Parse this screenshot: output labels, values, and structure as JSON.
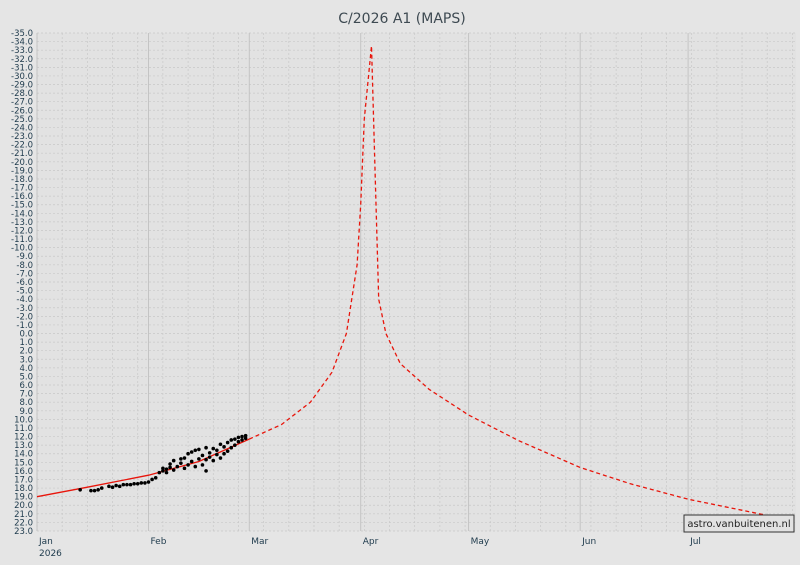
{
  "chart_data": {
    "type": "scatter",
    "title": "C/2026 A1 (MAPS)",
    "year_label": "2026",
    "credit": "astro.vanbuitenen.nl",
    "ylim": [
      -35,
      23
    ],
    "y_inverted": true,
    "y_tick_step": 1,
    "x_axis_type": "date",
    "xlim": [
      "2026-01-01",
      "2026-07-31"
    ],
    "x_ticks": [
      {
        "date": "2026-01-01",
        "label": "Jan"
      },
      {
        "date": "2026-02-01",
        "label": "Feb"
      },
      {
        "date": "2026-03-01",
        "label": "Mar"
      },
      {
        "date": "2026-04-01",
        "label": "Apr"
      },
      {
        "date": "2026-05-01",
        "label": "May"
      },
      {
        "date": "2026-06-01",
        "label": "Jun"
      },
      {
        "date": "2026-07-01",
        "label": "Jul"
      }
    ],
    "grid": true,
    "colors": {
      "background": "#e5e5e5",
      "plot_bg": "#e2e2e2",
      "grid": "#c8c8c8",
      "fit": "#e8150b",
      "observations": "#000000",
      "title": "#3e4a52",
      "ticks": "#1e3a4c"
    },
    "series": [
      {
        "style": "solid-line",
        "points": [
          [
            "2026-01-01",
            19.0
          ],
          [
            "2026-01-15",
            17.9
          ],
          [
            "2026-02-01",
            16.5
          ],
          [
            "2026-02-15",
            14.9
          ],
          [
            "2026-03-01",
            12.3
          ]
        ]
      },
      {
        "style": "dashed-line",
        "points": [
          [
            "2026-03-01",
            12.3
          ],
          [
            "2026-03-10",
            10.6
          ],
          [
            "2026-03-18",
            8.0
          ],
          [
            "2026-03-24",
            4.5
          ],
          [
            "2026-03-28",
            0.0
          ],
          [
            "2026-03-31",
            -8.0
          ],
          [
            "2026-04-01",
            -15.0
          ],
          [
            "2026-04-02",
            -25.0
          ],
          [
            "2026-04-04",
            -33.5
          ],
          [
            "2026-04-06",
            -4.0
          ],
          [
            "2026-04-08",
            0.0
          ],
          [
            "2026-04-12",
            3.5
          ],
          [
            "2026-04-20",
            6.5
          ],
          [
            "2026-05-01",
            9.5
          ],
          [
            "2026-05-15",
            12.5
          ],
          [
            "2026-06-01",
            15.6
          ],
          [
            "2026-06-15",
            17.5
          ],
          [
            "2026-07-01",
            19.3
          ],
          [
            "2026-07-15",
            20.5
          ],
          [
            "2026-07-29",
            21.7
          ]
        ]
      },
      {
        "style": "points",
        "points": [
          [
            "2026-01-13",
            18.2
          ],
          [
            "2026-01-16",
            18.3
          ],
          [
            "2026-01-17",
            18.3
          ],
          [
            "2026-01-18",
            18.2
          ],
          [
            "2026-01-19",
            18.0
          ],
          [
            "2026-01-21",
            17.8
          ],
          [
            "2026-01-22",
            17.9
          ],
          [
            "2026-01-23",
            17.7
          ],
          [
            "2026-01-24",
            17.8
          ],
          [
            "2026-01-25",
            17.6
          ],
          [
            "2026-01-26",
            17.6
          ],
          [
            "2026-01-27",
            17.6
          ],
          [
            "2026-01-28",
            17.5
          ],
          [
            "2026-01-29",
            17.5
          ],
          [
            "2026-01-30",
            17.4
          ],
          [
            "2026-01-31",
            17.4
          ],
          [
            "2026-02-01",
            17.3
          ],
          [
            "2026-02-02",
            17.0
          ],
          [
            "2026-02-03",
            16.8
          ],
          [
            "2026-02-04",
            16.2
          ],
          [
            "2026-02-05",
            16.0
          ],
          [
            "2026-02-05",
            15.7
          ],
          [
            "2026-02-06",
            15.8
          ],
          [
            "2026-02-06",
            16.2
          ],
          [
            "2026-02-07",
            15.2
          ],
          [
            "2026-02-07",
            15.6
          ],
          [
            "2026-02-08",
            14.8
          ],
          [
            "2026-02-08",
            15.9
          ],
          [
            "2026-02-09",
            15.5
          ],
          [
            "2026-02-10",
            14.6
          ],
          [
            "2026-02-10",
            15.1
          ],
          [
            "2026-02-11",
            14.5
          ],
          [
            "2026-02-11",
            15.7
          ],
          [
            "2026-02-12",
            14.0
          ],
          [
            "2026-02-12",
            15.3
          ],
          [
            "2026-02-13",
            13.8
          ],
          [
            "2026-02-13",
            14.9
          ],
          [
            "2026-02-14",
            15.5
          ],
          [
            "2026-02-14",
            13.6
          ],
          [
            "2026-02-15",
            14.6
          ],
          [
            "2026-02-15",
            13.5
          ],
          [
            "2026-02-16",
            14.2
          ],
          [
            "2026-02-16",
            15.3
          ],
          [
            "2026-02-17",
            13.3
          ],
          [
            "2026-02-17",
            14.7
          ],
          [
            "2026-02-17",
            16.0
          ],
          [
            "2026-02-18",
            13.9
          ],
          [
            "2026-02-18",
            14.4
          ],
          [
            "2026-02-19",
            13.4
          ],
          [
            "2026-02-19",
            14.8
          ],
          [
            "2026-02-20",
            13.6
          ],
          [
            "2026-02-20",
            14.1
          ],
          [
            "2026-02-21",
            12.9
          ],
          [
            "2026-02-21",
            14.5
          ],
          [
            "2026-02-22",
            13.2
          ],
          [
            "2026-02-22",
            14.0
          ],
          [
            "2026-02-23",
            12.7
          ],
          [
            "2026-02-23",
            13.7
          ],
          [
            "2026-02-24",
            12.4
          ],
          [
            "2026-02-24",
            13.3
          ],
          [
            "2026-02-25",
            12.3
          ],
          [
            "2026-02-25",
            13.0
          ],
          [
            "2026-02-26",
            12.1
          ],
          [
            "2026-02-26",
            12.6
          ],
          [
            "2026-02-27",
            12.0
          ],
          [
            "2026-02-27",
            12.4
          ],
          [
            "2026-02-28",
            11.9
          ],
          [
            "2026-02-28",
            12.2
          ]
        ]
      }
    ]
  }
}
